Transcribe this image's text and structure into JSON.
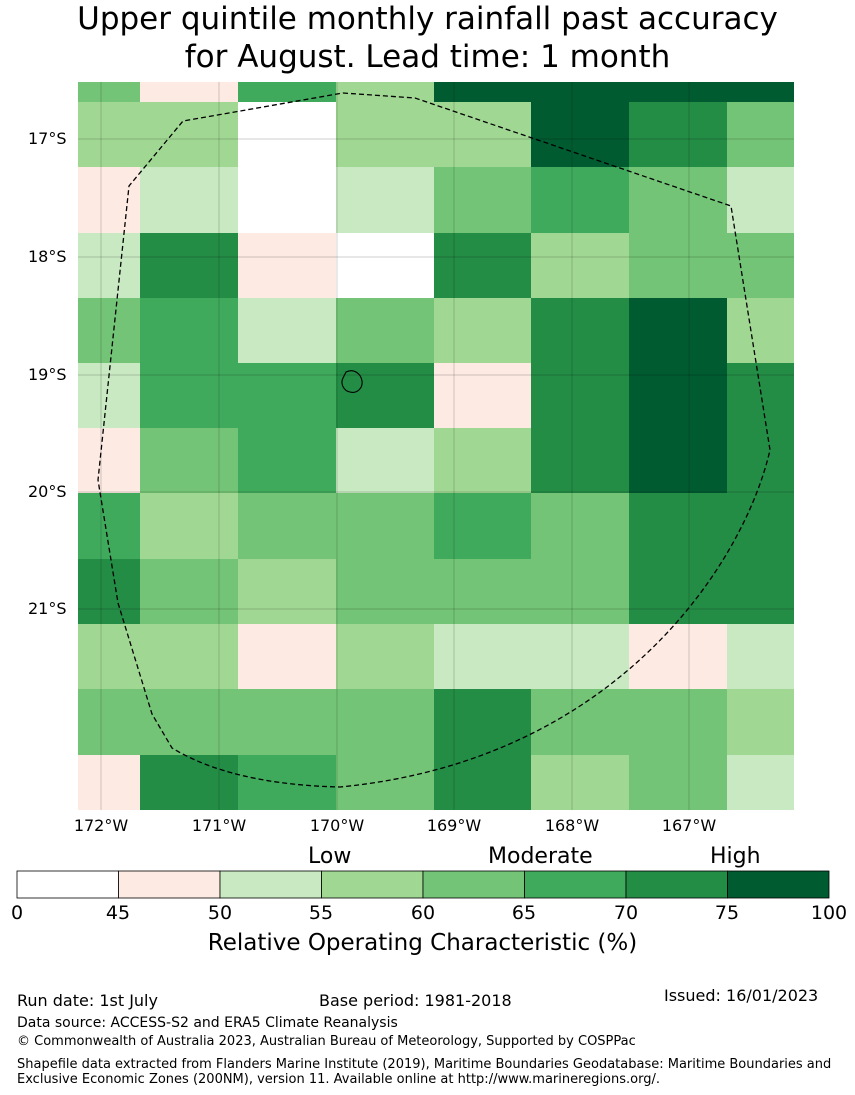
{
  "title": {
    "line1": "Upper quintile monthly rainfall past accuracy",
    "line2": "for August. Lead time: 1 month"
  },
  "map": {
    "lat_labels": [
      "17°S",
      "18°S",
      "19°S",
      "20°S",
      "21°S"
    ],
    "lon_labels": [
      "172°W",
      "171°W",
      "170°W",
      "169°W",
      "168°W",
      "167°W"
    ],
    "extent": {
      "lon_min": -172.2,
      "lon_max": -166.1,
      "lat_top": -16.5,
      "lat_bottom": -22.7
    },
    "grid_values": [
      [
        62,
        47,
        67,
        58,
        78,
        78,
        78,
        78
      ],
      [
        58,
        58,
        40,
        58,
        58,
        78,
        72,
        62
      ],
      [
        47,
        53,
        40,
        53,
        62,
        67,
        62,
        53
      ],
      [
        53,
        72,
        47,
        40,
        72,
        58,
        62,
        62
      ],
      [
        62,
        67,
        53,
        62,
        58,
        72,
        78,
        58
      ],
      [
        53,
        67,
        67,
        72,
        47,
        72,
        78,
        72
      ],
      [
        47,
        62,
        67,
        53,
        58,
        72,
        78,
        72
      ],
      [
        67,
        58,
        62,
        62,
        67,
        62,
        72,
        72
      ],
      [
        72,
        62,
        58,
        62,
        62,
        62,
        72,
        72
      ],
      [
        58,
        58,
        47,
        58,
        53,
        53,
        47,
        53
      ],
      [
        62,
        62,
        62,
        62,
        72,
        62,
        62,
        58
      ],
      [
        47,
        72,
        67,
        62,
        72,
        58,
        62,
        53
      ]
    ]
  },
  "colorbar": {
    "categories": {
      "low": "Low",
      "moderate": "Moderate",
      "high": "High"
    },
    "ticks": [
      "0",
      "45",
      "50",
      "55",
      "60",
      "65",
      "70",
      "75",
      "100"
    ],
    "colors": [
      "#ffffff",
      "#fdeae3",
      "#c8e9c1",
      "#a0d893",
      "#73c476",
      "#40aa5c",
      "#238c45",
      "#005b30"
    ],
    "label": "Relative Operating Characteristic (%)"
  },
  "footer": {
    "run_date": "Run date: 1st July",
    "base_period": "Base period: 1981-2018",
    "issued": "Issued: 16/01/2023",
    "data_source": "Data source: ACCESS-S2 and ERA5 Climate Reanalysis",
    "copyright": "© Commonwealth of Australia 2023, Australian Bureau of Meteorology, Supported by COSPPac",
    "shapefile": "Shapefile data extracted from Flanders Marine Institute (2019), Maritime Boundaries Geodatabase: Maritime Boundaries and Exclusive Economic Zones (200NM), version 11. Available online at http://www.marineregions.org/."
  }
}
